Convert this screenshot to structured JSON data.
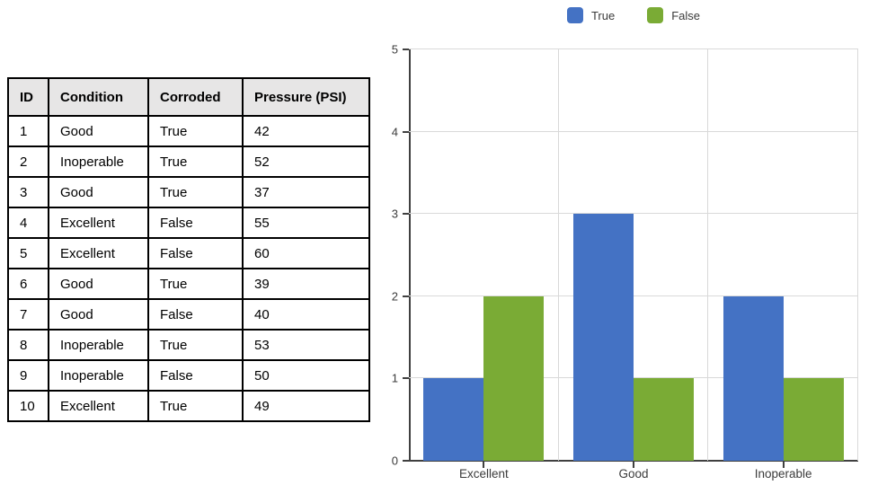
{
  "table": {
    "headers": [
      "ID",
      "Condition",
      "Corroded",
      "Pressure (PSI)"
    ],
    "rows": [
      [
        "1",
        "Good",
        "True",
        "42"
      ],
      [
        "2",
        "Inoperable",
        "True",
        "52"
      ],
      [
        "3",
        "Good",
        "True",
        "37"
      ],
      [
        "4",
        "Excellent",
        "False",
        "55"
      ],
      [
        "5",
        "Excellent",
        "False",
        "60"
      ],
      [
        "6",
        "Good",
        "True",
        "39"
      ],
      [
        "7",
        "Good",
        "False",
        "40"
      ],
      [
        "8",
        "Inoperable",
        "True",
        "53"
      ],
      [
        "9",
        "Inoperable",
        "False",
        "50"
      ],
      [
        "10",
        "Excellent",
        "True",
        "49"
      ]
    ]
  },
  "chart_data": {
    "type": "bar",
    "title": "",
    "xlabel": "",
    "ylabel": "",
    "categories": [
      "Excellent",
      "Good",
      "Inoperable"
    ],
    "series": [
      {
        "name": "True",
        "color": "#4472C4",
        "values": [
          1,
          3,
          2
        ]
      },
      {
        "name": "False",
        "color": "#7AAB35",
        "values": [
          2,
          1,
          1
        ]
      }
    ],
    "ylim": [
      0,
      5
    ],
    "yticks": [
      0,
      1,
      2,
      3,
      4,
      5
    ],
    "grid": true,
    "legend_position": "top",
    "colors": {
      "axis": "#404040",
      "gridline": "#D9D9D9",
      "label_text": "#3B3B3B",
      "table_header_bg": "#E7E6E6",
      "table_border": "#000000"
    }
  }
}
